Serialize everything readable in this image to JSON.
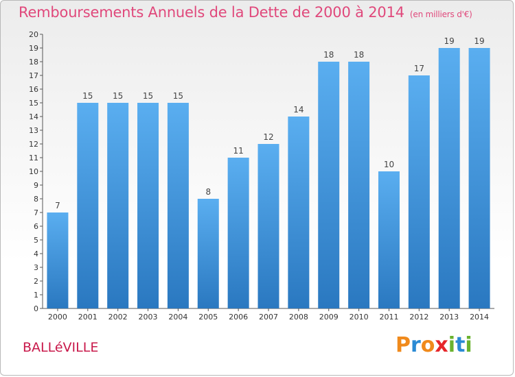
{
  "page": {
    "title": "Remboursements Annuels de la Dette de 2000 à 2014",
    "unit": "(en milliers d'€)",
    "commune": "BALLéVILLE",
    "logo": {
      "letters": [
        "P",
        "r",
        "o",
        "x",
        "i",
        "t",
        "i"
      ],
      "colors": [
        "#f08a1c",
        "#2a8ad4",
        "#f08a1c",
        "#e6262a",
        "#6ab22e",
        "#2a8ad4",
        "#6ab22e"
      ]
    }
  },
  "chart_data": {
    "type": "bar",
    "title": "Remboursements Annuels de la Dette de 2000 à 2014",
    "ylabel": "en milliers d'€",
    "xlabel": "",
    "categories": [
      "2000",
      "2001",
      "2002",
      "2003",
      "2004",
      "2005",
      "2006",
      "2007",
      "2008",
      "2009",
      "2010",
      "2011",
      "2012",
      "2013",
      "2014"
    ],
    "values": [
      7,
      15,
      15,
      15,
      15,
      8,
      11,
      12,
      14,
      18,
      18,
      10,
      17,
      19,
      19
    ],
    "ylim": [
      0,
      20
    ],
    "yticks": [
      0,
      1,
      2,
      3,
      4,
      5,
      6,
      7,
      8,
      9,
      10,
      11,
      12,
      13,
      14,
      15,
      16,
      17,
      18,
      19,
      20
    ],
    "grid": false,
    "bar_color_top": "#5aaef0",
    "bar_color_bottom": "#2a78c0"
  }
}
